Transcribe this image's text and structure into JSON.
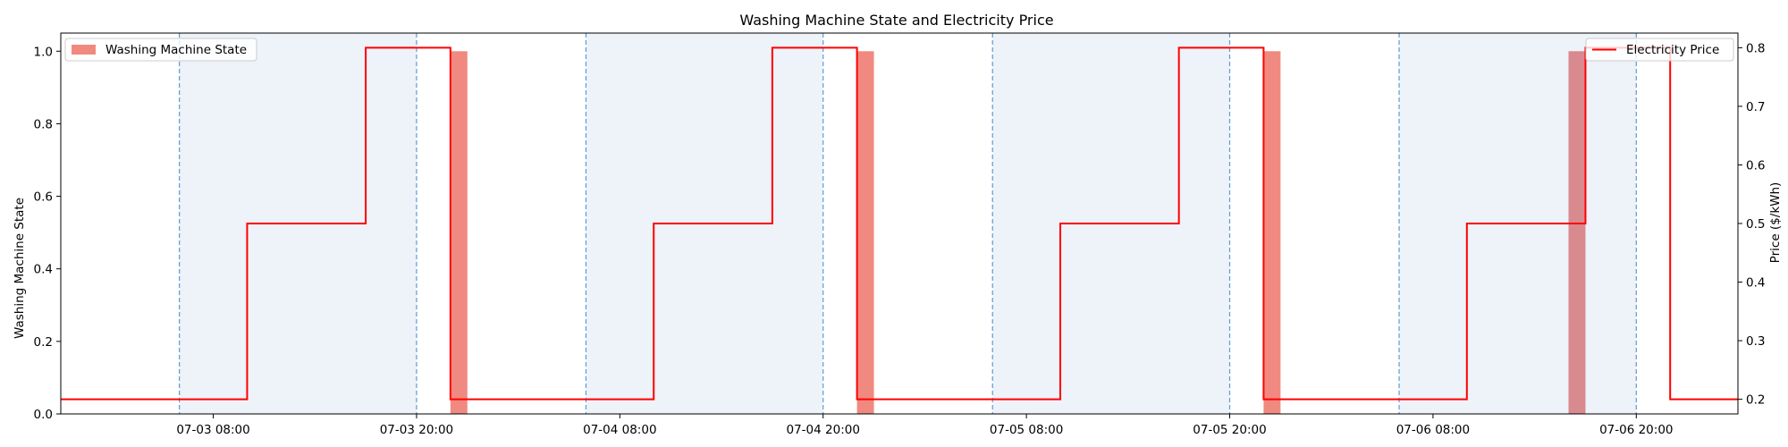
{
  "chart_data": {
    "type": "bar+line",
    "title": "Washing Machine State and Electricity Price",
    "ylabel_left": "Washing Machine State",
    "ylabel_right": "Price ($/kWh)",
    "xlabel": "",
    "x_range": [
      "2024-07-02 23:00",
      "2024-07-07 02:00"
    ],
    "ylim_left": [
      0.0,
      1.05
    ],
    "ylim_right": [
      0.175,
      0.825
    ],
    "y_ticks_left": [
      "0.0",
      "0.2",
      "0.4",
      "0.6",
      "0.8",
      "1.0"
    ],
    "y_ticks_right": [
      "0.2",
      "0.3",
      "0.4",
      "0.5",
      "0.6",
      "0.7",
      "0.8"
    ],
    "x_ticks": [
      {
        "t": "2024-07-03 08:00",
        "label": "07-03 08:00"
      },
      {
        "t": "2024-07-03 20:00",
        "label": "07-03 20:00"
      },
      {
        "t": "2024-07-04 08:00",
        "label": "07-04 08:00"
      },
      {
        "t": "2024-07-04 20:00",
        "label": "07-04 20:00"
      },
      {
        "t": "2024-07-05 08:00",
        "label": "07-05 08:00"
      },
      {
        "t": "2024-07-05 20:00",
        "label": "07-05 20:00"
      },
      {
        "t": "2024-07-06 08:00",
        "label": "07-06 08:00"
      },
      {
        "t": "2024-07-06 20:00",
        "label": "07-06 20:00"
      }
    ],
    "shaded_spans": [
      [
        "2024-07-03 06:00",
        "2024-07-03 20:00"
      ],
      [
        "2024-07-04 06:00",
        "2024-07-04 20:00"
      ],
      [
        "2024-07-05 06:00",
        "2024-07-05 20:00"
      ],
      [
        "2024-07-06 06:00",
        "2024-07-06 20:00"
      ]
    ],
    "dashed_vlines": [
      "2024-07-03 06:00",
      "2024-07-03 20:00",
      "2024-07-04 06:00",
      "2024-07-04 20:00",
      "2024-07-05 06:00",
      "2024-07-05 20:00",
      "2024-07-06 06:00",
      "2024-07-06 20:00"
    ],
    "series": [
      {
        "name": "Washing Machine State",
        "kind": "bar",
        "color": "#f08a80",
        "overlap_color": "#d98a8f",
        "bars": [
          {
            "start": "2024-07-03 22:00",
            "end": "2024-07-03 23:00",
            "value": 1.0
          },
          {
            "start": "2024-07-04 22:00",
            "end": "2024-07-04 23:00",
            "value": 1.0
          },
          {
            "start": "2024-07-05 22:00",
            "end": "2024-07-05 23:00",
            "value": 1.0
          },
          {
            "start": "2024-07-06 16:00",
            "end": "2024-07-06 17:00",
            "value": 1.0
          }
        ]
      },
      {
        "name": "Electricity Price",
        "kind": "step",
        "color": "#ff0000",
        "points": [
          {
            "t": "2024-07-02 23:00",
            "price": 0.2
          },
          {
            "t": "2024-07-03 10:00",
            "price": 0.5
          },
          {
            "t": "2024-07-03 17:00",
            "price": 0.8
          },
          {
            "t": "2024-07-03 22:00",
            "price": 0.2
          },
          {
            "t": "2024-07-04 10:00",
            "price": 0.5
          },
          {
            "t": "2024-07-04 17:00",
            "price": 0.8
          },
          {
            "t": "2024-07-04 22:00",
            "price": 0.2
          },
          {
            "t": "2024-07-05 10:00",
            "price": 0.5
          },
          {
            "t": "2024-07-05 17:00",
            "price": 0.8
          },
          {
            "t": "2024-07-05 22:00",
            "price": 0.2
          },
          {
            "t": "2024-07-06 10:00",
            "price": 0.5
          },
          {
            "t": "2024-07-06 17:00",
            "price": 0.8
          },
          {
            "t": "2024-07-06 22:00",
            "price": 0.2
          },
          {
            "t": "2024-07-07 02:00",
            "price": 0.2
          }
        ]
      }
    ],
    "legend_left": {
      "label": "Washing Machine State",
      "placement": "upper-left"
    },
    "legend_right": {
      "label": "Electricity Price",
      "placement": "upper-right"
    },
    "colors": {
      "shade": "#eef2f9",
      "vline": "#5b9bd5",
      "bar": "#f08a80",
      "line": "#ff0000"
    }
  }
}
